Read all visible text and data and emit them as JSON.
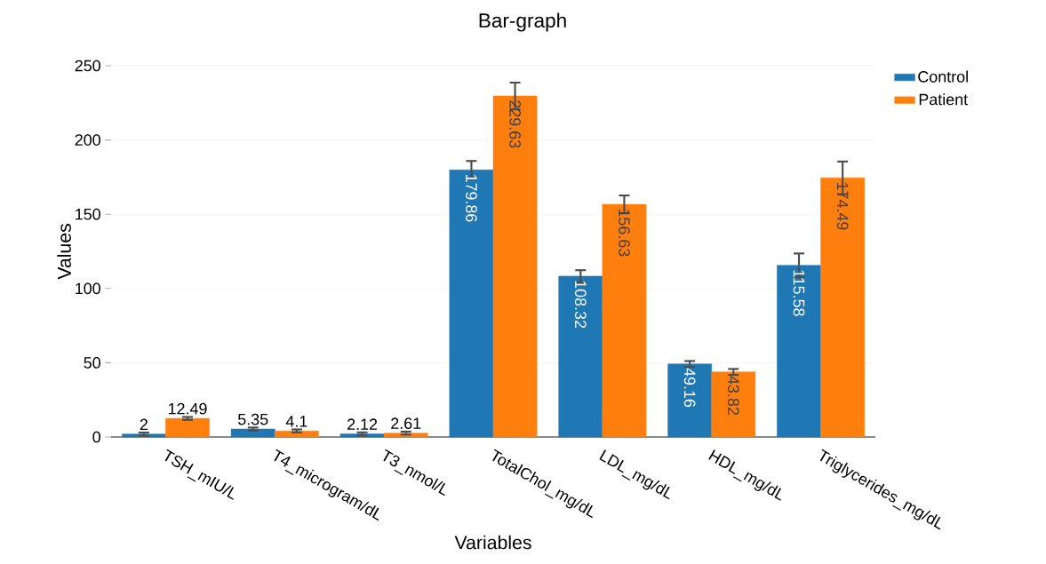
{
  "chart_data": {
    "type": "bar",
    "title": "Bar-graph",
    "xlabel": "Variables",
    "ylabel": "Values",
    "categories": [
      "TSH_mIU/L",
      "T4_microgram/dL",
      "T3_nmol/L",
      "TotalChol_mg/dL",
      "LDL_mg/dL",
      "HDL_mg/dL",
      "Triglycerides_mg/dL"
    ],
    "series": [
      {
        "name": "Control",
        "color": "#1f77b4",
        "values": [
          2,
          5.35,
          2.12,
          179.86,
          108.32,
          49.16,
          115.58
        ],
        "errors": [
          1,
          1,
          1,
          6,
          4,
          2,
          8
        ]
      },
      {
        "name": "Patient",
        "color": "#ff7f0e",
        "values": [
          12.49,
          4.1,
          2.61,
          229.63,
          156.63,
          43.82,
          174.49
        ],
        "errors": [
          1,
          1,
          1,
          9,
          6,
          2,
          11
        ]
      }
    ],
    "ylim": [
      0,
      250
    ],
    "yticks": [
      0,
      50,
      100,
      150,
      200,
      250
    ],
    "grid": "y",
    "legend": "top right",
    "data_labels": true
  }
}
